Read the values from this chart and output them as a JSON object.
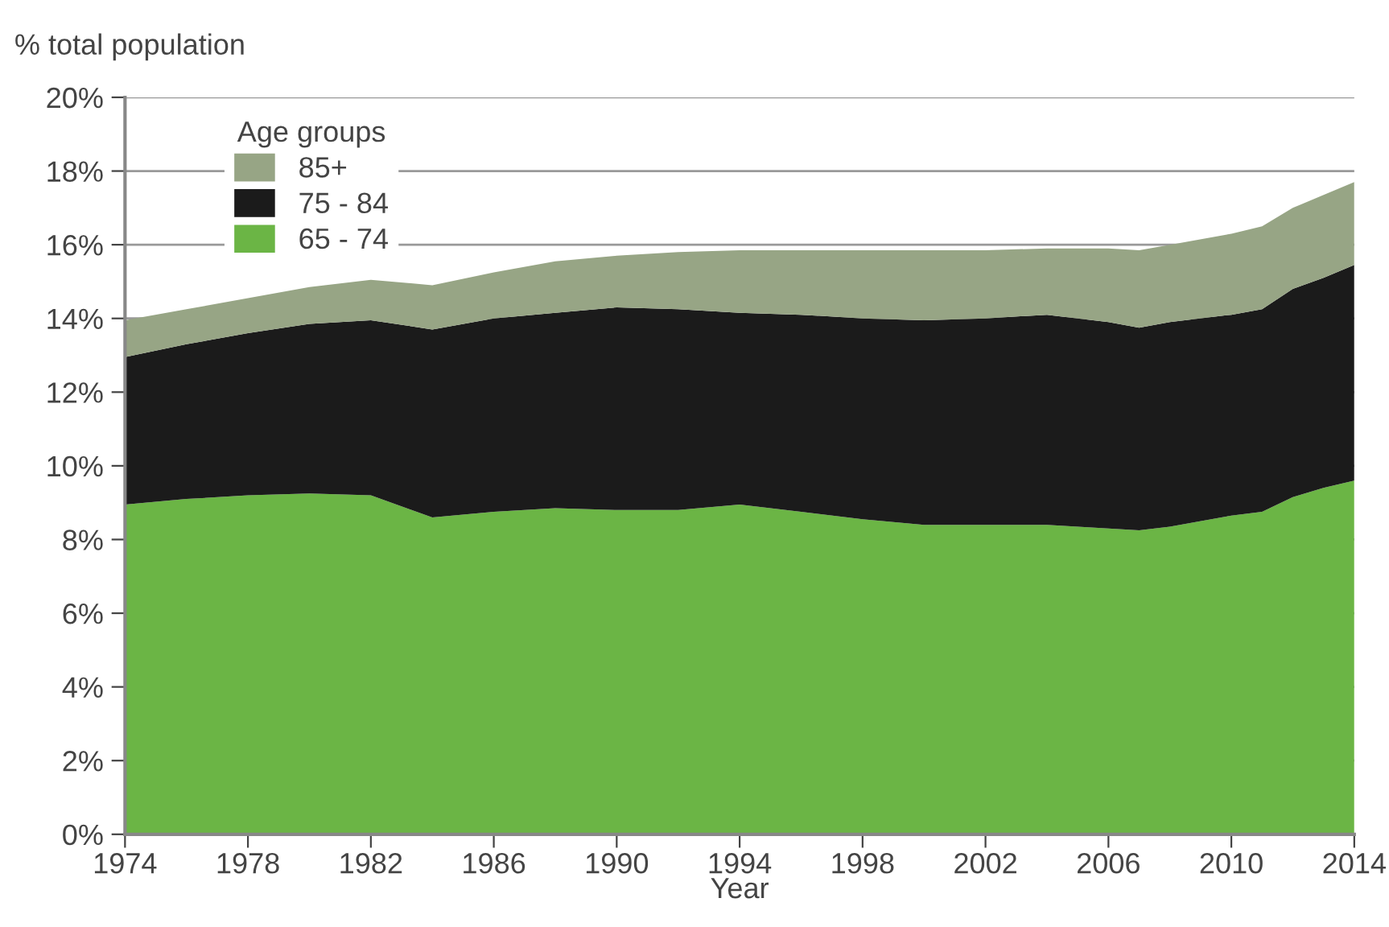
{
  "chart_data": {
    "type": "area",
    "stacked": true,
    "ylabel": "% total population",
    "xlabel": "Year",
    "legend_title": "Age groups",
    "legend": "top left",
    "grid": "y",
    "x": [
      1974,
      1976,
      1978,
      1980,
      1982,
      1984,
      1986,
      1988,
      1990,
      1992,
      1994,
      1996,
      1998,
      2000,
      2002,
      2004,
      2006,
      2007,
      2008,
      2010,
      2011,
      2012,
      2013,
      2014
    ],
    "xlim": [
      1974,
      2014
    ],
    "xticks": [
      1974,
      1978,
      1982,
      1986,
      1990,
      1994,
      1998,
      2002,
      2006,
      2010,
      2014
    ],
    "ylim": [
      0,
      20
    ],
    "yticks": [
      {
        "value": 0,
        "label": "0%"
      },
      {
        "value": 2,
        "label": "2%"
      },
      {
        "value": 4,
        "label": "4%"
      },
      {
        "value": 6,
        "label": "6%"
      },
      {
        "value": 8,
        "label": "8%"
      },
      {
        "value": 10,
        "label": "10%"
      },
      {
        "value": 12,
        "label": "12%"
      },
      {
        "value": 14,
        "label": "14%"
      },
      {
        "value": 16,
        "label": "16%"
      },
      {
        "value": 18,
        "label": "18%"
      },
      {
        "value": 20,
        "label": "20%"
      }
    ],
    "series": [
      {
        "name": "65 - 74",
        "color": "#6bb545",
        "values": [
          8.95,
          9.1,
          9.2,
          9.25,
          9.2,
          8.6,
          8.75,
          8.85,
          8.8,
          8.8,
          8.95,
          8.75,
          8.55,
          8.4,
          8.4,
          8.4,
          8.3,
          8.25,
          8.35,
          8.65,
          8.75,
          9.15,
          9.4,
          9.6
        ]
      },
      {
        "name": "75 - 84",
        "color": "#1b1b1b",
        "values": [
          4.0,
          4.2,
          4.4,
          4.6,
          4.75,
          5.1,
          5.25,
          5.3,
          5.5,
          5.45,
          5.2,
          5.35,
          5.45,
          5.55,
          5.6,
          5.7,
          5.6,
          5.5,
          5.55,
          5.45,
          5.5,
          5.65,
          5.7,
          5.85
        ]
      },
      {
        "name": "85+",
        "color": "#97a585",
        "values": [
          1.0,
          0.95,
          0.95,
          1.0,
          1.1,
          1.2,
          1.25,
          1.4,
          1.4,
          1.55,
          1.7,
          1.75,
          1.85,
          1.9,
          1.85,
          1.8,
          2.0,
          2.1,
          2.1,
          2.2,
          2.25,
          2.2,
          2.25,
          2.25
        ]
      }
    ]
  }
}
